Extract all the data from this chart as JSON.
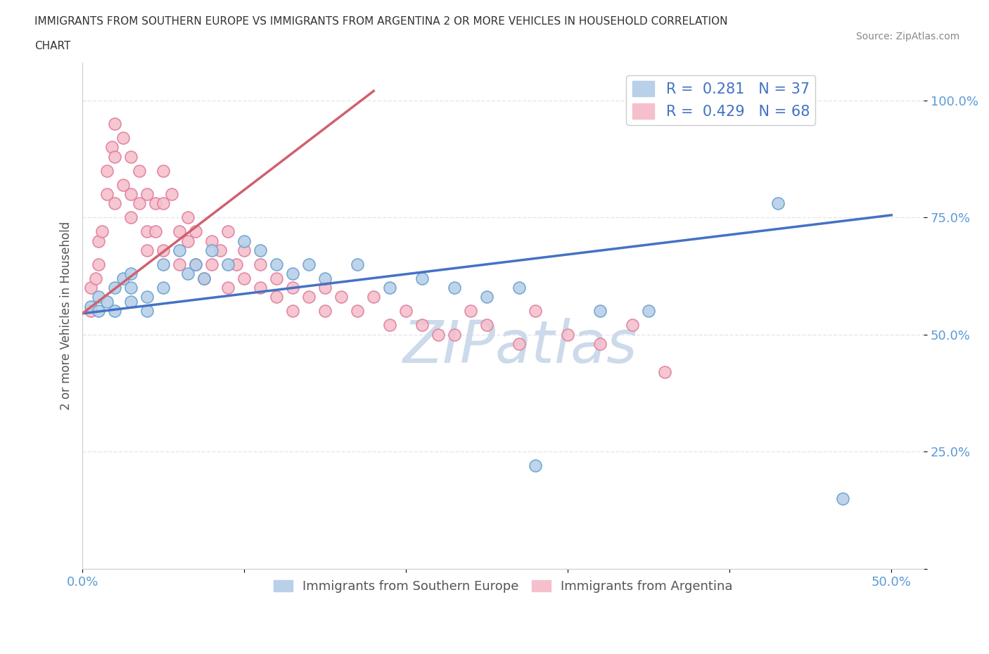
{
  "title_line1": "IMMIGRANTS FROM SOUTHERN EUROPE VS IMMIGRANTS FROM ARGENTINA 2 OR MORE VEHICLES IN HOUSEHOLD CORRELATION",
  "title_line2": "CHART",
  "source": "Source: ZipAtlas.com",
  "ylabel": "2 or more Vehicles in Household",
  "xlim": [
    0.0,
    0.52
  ],
  "ylim": [
    0.0,
    1.08
  ],
  "blue_color": "#b8d0e8",
  "blue_edge_color": "#6ba3d0",
  "pink_color": "#f5c0cc",
  "pink_edge_color": "#e080a0",
  "blue_line_color": "#4472c4",
  "pink_line_color": "#d06070",
  "tick_color": "#5b9bd5",
  "legend_text_color": "#4472c4",
  "watermark_color": "#ccdaeb",
  "R_blue": 0.281,
  "N_blue": 37,
  "R_pink": 0.429,
  "N_pink": 68,
  "blue_line_x0": 0.0,
  "blue_line_y0": 0.545,
  "blue_line_x1": 0.5,
  "blue_line_y1": 0.755,
  "pink_line_x0": 0.0,
  "pink_line_y0": 0.545,
  "pink_line_x1": 0.18,
  "pink_line_y1": 1.02,
  "blue_x": [
    0.005,
    0.01,
    0.01,
    0.015,
    0.02,
    0.02,
    0.025,
    0.03,
    0.03,
    0.03,
    0.04,
    0.04,
    0.05,
    0.05,
    0.06,
    0.065,
    0.07,
    0.075,
    0.08,
    0.09,
    0.1,
    0.11,
    0.12,
    0.13,
    0.14,
    0.15,
    0.17,
    0.19,
    0.21,
    0.23,
    0.25,
    0.27,
    0.28,
    0.32,
    0.35,
    0.43,
    0.47
  ],
  "blue_y": [
    0.56,
    0.55,
    0.58,
    0.57,
    0.6,
    0.55,
    0.62,
    0.57,
    0.6,
    0.63,
    0.58,
    0.55,
    0.65,
    0.6,
    0.68,
    0.63,
    0.65,
    0.62,
    0.68,
    0.65,
    0.7,
    0.68,
    0.65,
    0.63,
    0.65,
    0.62,
    0.65,
    0.6,
    0.62,
    0.6,
    0.58,
    0.6,
    0.22,
    0.55,
    0.55,
    0.78,
    0.15
  ],
  "pink_x": [
    0.005,
    0.005,
    0.008,
    0.01,
    0.01,
    0.012,
    0.015,
    0.015,
    0.018,
    0.02,
    0.02,
    0.02,
    0.025,
    0.025,
    0.03,
    0.03,
    0.03,
    0.035,
    0.035,
    0.04,
    0.04,
    0.04,
    0.045,
    0.045,
    0.05,
    0.05,
    0.05,
    0.055,
    0.06,
    0.06,
    0.065,
    0.065,
    0.07,
    0.07,
    0.075,
    0.08,
    0.08,
    0.085,
    0.09,
    0.09,
    0.095,
    0.1,
    0.1,
    0.11,
    0.11,
    0.12,
    0.12,
    0.13,
    0.13,
    0.14,
    0.15,
    0.15,
    0.16,
    0.17,
    0.18,
    0.19,
    0.2,
    0.21,
    0.22,
    0.23,
    0.24,
    0.25,
    0.27,
    0.28,
    0.3,
    0.32,
    0.34,
    0.36
  ],
  "pink_y": [
    0.55,
    0.6,
    0.62,
    0.7,
    0.65,
    0.72,
    0.8,
    0.85,
    0.9,
    0.95,
    0.88,
    0.78,
    0.92,
    0.82,
    0.88,
    0.8,
    0.75,
    0.85,
    0.78,
    0.8,
    0.72,
    0.68,
    0.78,
    0.72,
    0.85,
    0.78,
    0.68,
    0.8,
    0.72,
    0.65,
    0.75,
    0.7,
    0.72,
    0.65,
    0.62,
    0.7,
    0.65,
    0.68,
    0.72,
    0.6,
    0.65,
    0.68,
    0.62,
    0.65,
    0.6,
    0.62,
    0.58,
    0.6,
    0.55,
    0.58,
    0.55,
    0.6,
    0.58,
    0.55,
    0.58,
    0.52,
    0.55,
    0.52,
    0.5,
    0.5,
    0.55,
    0.52,
    0.48,
    0.55,
    0.5,
    0.48,
    0.52,
    0.42
  ],
  "grid_color": "#e0e0e0",
  "background_color": "#ffffff"
}
